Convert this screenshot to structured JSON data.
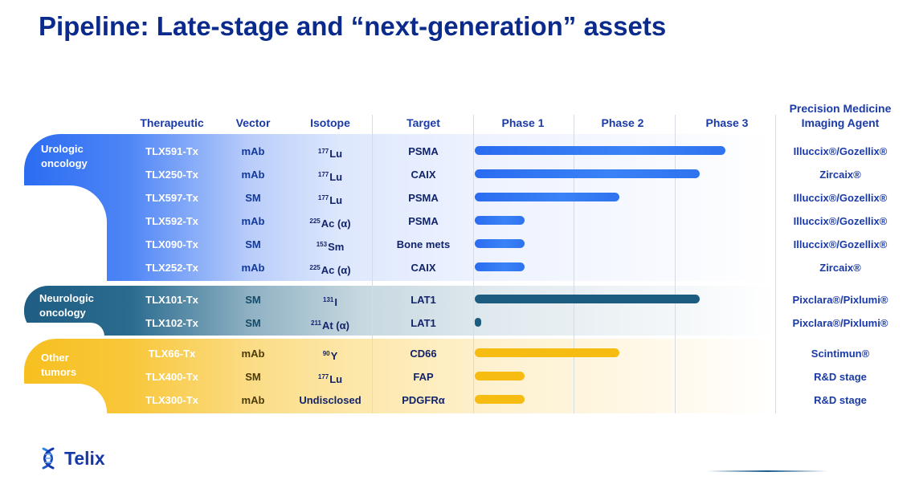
{
  "title": "Pipeline: Late-stage and “next-generation” assets",
  "headers": {
    "therapeutic": "Therapeutic",
    "vector": "Vector",
    "isotope": "Isotope",
    "target": "Target",
    "phase1": "Phase 1",
    "phase2": "Phase 2",
    "phase3": "Phase 3",
    "imaging_line1": "Precision Medicine",
    "imaging_line2": "Imaging Agent"
  },
  "groups": {
    "urologic": {
      "line1": "Urologic",
      "line2": "oncology"
    },
    "neurologic": {
      "line1": "Neurologic",
      "line2": "oncology"
    },
    "other": {
      "line1": "Other",
      "line2": "tumors"
    }
  },
  "rows": [
    {
      "therapeutic": "TLX591-Tx",
      "vector": "mAb",
      "isotope_mass": "177",
      "isotope_el": "Lu",
      "target": "PSMA",
      "imaging": "Illuccix®/Gozellix®"
    },
    {
      "therapeutic": "TLX250-Tx",
      "vector": "mAb",
      "isotope_mass": "177",
      "isotope_el": "Lu",
      "target": "CAIX",
      "imaging": "Zircaix®"
    },
    {
      "therapeutic": "TLX597-Tx",
      "vector": "SM",
      "isotope_mass": "177",
      "isotope_el": "Lu",
      "target": "PSMA",
      "imaging": "Illuccix®/Gozellix®"
    },
    {
      "therapeutic": "TLX592-Tx",
      "vector": "mAb",
      "isotope_mass": "225",
      "isotope_el": "Ac (α)",
      "target": "PSMA",
      "imaging": "Illuccix®/Gozellix®"
    },
    {
      "therapeutic": "TLX090-Tx",
      "vector": "SM",
      "isotope_mass": "153",
      "isotope_el": "Sm",
      "target": "Bone mets",
      "imaging": "Illuccix®/Gozellix®"
    },
    {
      "therapeutic": "TLX252-Tx",
      "vector": "mAb",
      "isotope_mass": "225",
      "isotope_el": "Ac (α)",
      "target": "CAIX",
      "imaging": "Zircaix®"
    },
    {
      "therapeutic": "TLX101-Tx",
      "vector": "SM",
      "isotope_mass": "131",
      "isotope_el": "I",
      "target": "LAT1",
      "imaging": "Pixclara®/Pixlumi®"
    },
    {
      "therapeutic": "TLX102-Tx",
      "vector": "SM",
      "isotope_mass": "211",
      "isotope_el": "At (α)",
      "target": "LAT1",
      "imaging": "Pixclara®/Pixlumi®"
    },
    {
      "therapeutic": "TLX66-Tx",
      "vector": "mAb",
      "isotope_mass": "90",
      "isotope_el": "Y",
      "target": "CD66",
      "imaging": "Scintimun®"
    },
    {
      "therapeutic": "TLX400-Tx",
      "vector": "SM",
      "isotope_mass": "177",
      "isotope_el": "Lu",
      "target": "FAP",
      "imaging": "R&D stage"
    },
    {
      "therapeutic": "TLX300-Tx",
      "vector": "mAb",
      "isotope_mass": "",
      "isotope_el": "Undisclosed",
      "target": "PDGFRα",
      "imaging": "R&D stage"
    }
  ],
  "chart_data": {
    "type": "bar",
    "orientation": "horizontal",
    "x_scale": [
      "Phase 1",
      "Phase 2",
      "Phase 3"
    ],
    "xlim": [
      0,
      3
    ],
    "categories": [
      "TLX591-Tx",
      "TLX250-Tx",
      "TLX597-Tx",
      "TLX592-Tx",
      "TLX090-Tx",
      "TLX252-Tx",
      "TLX101-Tx",
      "TLX102-Tx",
      "TLX66-Tx",
      "TLX400-Tx",
      "TLX300-Tx"
    ],
    "values": [
      2.5,
      2.25,
      1.45,
      0.5,
      0.5,
      0.5,
      2.25,
      0.05,
      1.45,
      0.5,
      0.5
    ],
    "colors": {
      "urologic": "#2f73ef",
      "neurologic": "#1c5c80",
      "other": "#f7bc12"
    }
  },
  "logo": {
    "word": "Telix"
  }
}
